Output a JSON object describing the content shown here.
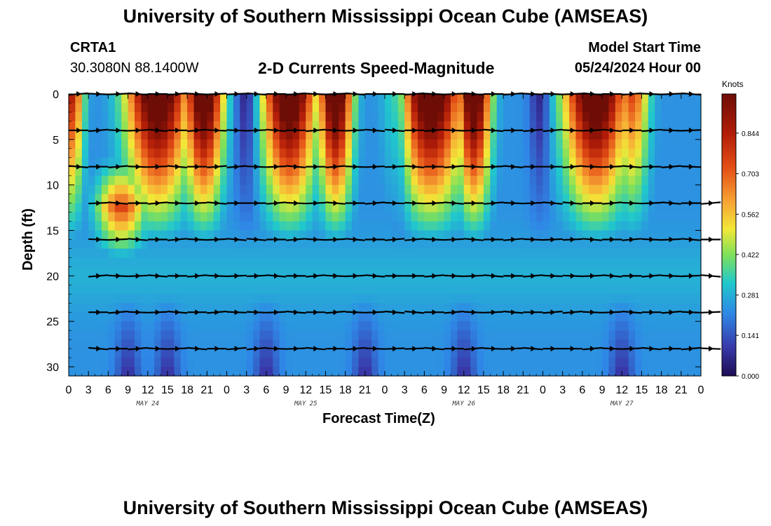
{
  "header": {
    "main_title": "University of Southern Mississippi Ocean Cube (AMSEAS)",
    "station_id": "CRTA1",
    "station_coords": "30.3080N  88.1400W",
    "plot_title": "2-D Currents Speed-Magnitude",
    "model_start_label": "Model Start Time",
    "model_start_value": "05/24/2024 Hour 00",
    "footer_title": "University of Southern Mississippi Ocean Cube (AMSEAS)"
  },
  "chart_data": {
    "type": "heatmap",
    "title": "2-D Currents Speed-Magnitude",
    "xlabel": "Forecast Time(Z)",
    "ylabel": "Depth (ft)",
    "x_range_hours": [
      0,
      96
    ],
    "y_range_ft": [
      0,
      31
    ],
    "x_tick_labels": [
      "0",
      "3",
      "6",
      "9",
      "12",
      "15",
      "18",
      "21",
      "0",
      "3",
      "6",
      "9",
      "12",
      "15",
      "18",
      "21",
      "0",
      "3",
      "6",
      "9",
      "12",
      "15",
      "18",
      "21",
      "0",
      "3",
      "6",
      "9",
      "12",
      "15",
      "18",
      "21",
      "0"
    ],
    "y_ticks": [
      0,
      5,
      10,
      15,
      20,
      25,
      30
    ],
    "date_labels": [
      {
        "label": "MAY 24",
        "hour": 12
      },
      {
        "label": "MAY 25",
        "hour": 36
      },
      {
        "label": "MAY 26",
        "hour": 60
      },
      {
        "label": "MAY 27",
        "hour": 84
      }
    ],
    "colorbar": {
      "units": "Knots",
      "ticks": [
        0.0,
        0.141,
        0.281,
        0.422,
        0.562,
        0.703,
        0.844
      ],
      "tick_labels": [
        "0.000",
        "0.141",
        "0.281",
        "0.422",
        "0.562",
        "0.703",
        "0.844"
      ],
      "max": 0.98
    },
    "arrow_depths_ft": [
      0,
      4,
      8,
      12,
      16,
      20,
      24,
      28
    ],
    "arrow_hours": [
      3,
      6,
      9,
      12,
      15,
      18,
      21,
      24
    ]
  }
}
